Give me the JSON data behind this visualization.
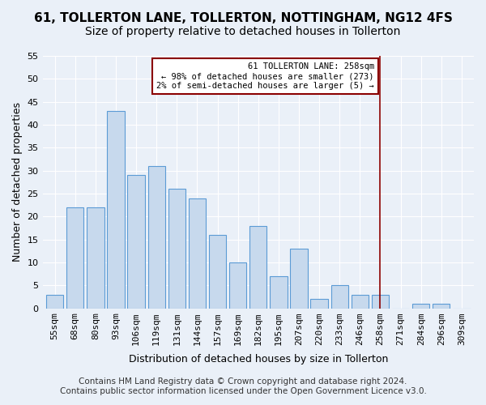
{
  "title": "61, TOLLERTON LANE, TOLLERTON, NOTTINGHAM, NG12 4FS",
  "subtitle": "Size of property relative to detached houses in Tollerton",
  "xlabel": "Distribution of detached houses by size in Tollerton",
  "ylabel": "Number of detached properties",
  "categories": [
    "55sqm",
    "68sqm",
    "80sqm",
    "93sqm",
    "106sqm",
    "119sqm",
    "131sqm",
    "144sqm",
    "157sqm",
    "169sqm",
    "182sqm",
    "195sqm",
    "207sqm",
    "220sqm",
    "233sqm",
    "246sqm",
    "258sqm",
    "271sqm",
    "284sqm",
    "296sqm",
    "309sqm"
  ],
  "values": [
    3,
    22,
    22,
    43,
    29,
    31,
    26,
    24,
    16,
    10,
    18,
    7,
    13,
    2,
    5,
    3,
    3,
    0,
    1,
    1,
    0
  ],
  "bar_color": "#c7d9ed",
  "bar_edgecolor": "#5b9bd5",
  "vline_x": 16,
  "vline_color": "#8b0000",
  "annotation_title": "61 TOLLERTON LANE: 258sqm",
  "annotation_line1": "← 98% of detached houses are smaller (273)",
  "annotation_line2": "2% of semi-detached houses are larger (5) →",
  "annotation_box_color": "#8b0000",
  "ylim": [
    0,
    55
  ],
  "yticks": [
    0,
    5,
    10,
    15,
    20,
    25,
    30,
    35,
    40,
    45,
    50,
    55
  ],
  "footnote1": "Contains HM Land Registry data © Crown copyright and database right 2024.",
  "footnote2": "Contains public sector information licensed under the Open Government Licence v3.0.",
  "background_color": "#eaf0f8",
  "plot_background": "#eaf0f8",
  "title_fontsize": 11,
  "subtitle_fontsize": 10,
  "axis_label_fontsize": 9,
  "tick_fontsize": 8,
  "footnote_fontsize": 7.5
}
